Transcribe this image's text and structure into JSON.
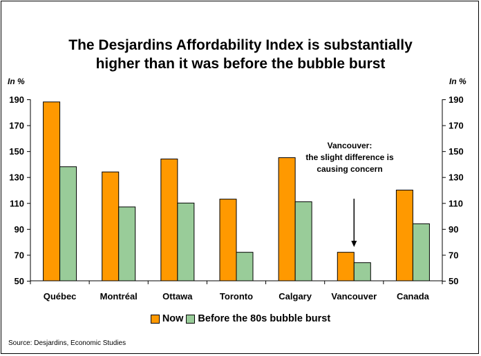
{
  "title_line1": "The Desjardins Affordability Index is substantially",
  "title_line2": "higher than it was before the bubble burst",
  "unit_left": "In %",
  "unit_right": "In %",
  "annotation": "Vancouver:\nthe slight difference is\ncausing concern",
  "source": "Source: Desjardins, Economic Studies",
  "colors": {
    "now": "#FF9900",
    "before": "#99CC99"
  },
  "chart_data": {
    "type": "bar",
    "title": "The Desjardins Affordability Index is substantially higher than it was before the bubble burst",
    "categories": [
      "Québec",
      "Montréal",
      "Ottawa",
      "Toronto",
      "Calgary",
      "Vancouver",
      "Canada"
    ],
    "series": [
      {
        "name": "Now",
        "values": [
          188,
          134,
          144,
          113,
          145,
          72,
          120
        ]
      },
      {
        "name": "Before the 80s bubble burst",
        "values": [
          138,
          107,
          110,
          72,
          111,
          64,
          94
        ]
      }
    ],
    "yticks": [
      50,
      70,
      90,
      110,
      130,
      150,
      170,
      190
    ],
    "ylim": [
      50,
      190
    ],
    "ylabel": "In %",
    "y2label": "In %",
    "grid": false,
    "legend": "bottom"
  }
}
